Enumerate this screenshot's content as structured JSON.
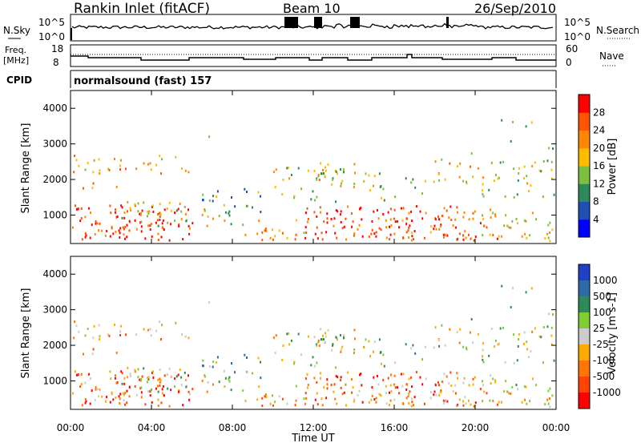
{
  "header": {
    "station": "Rankin Inlet (fitACF)",
    "beam": "Beam 10",
    "date": "26/Sep/2010"
  },
  "top_panels": {
    "nsky_label": "N.Sky",
    "nsky_ticks": [
      "10^5",
      "10^0"
    ],
    "nsearch_label": "N.Search",
    "freq_label": "Freq.",
    "freq_unit": "[MHz]",
    "freq_ticks": [
      "18",
      "8"
    ],
    "nave_label": "Nave",
    "nave_ticks": [
      "60",
      "0"
    ],
    "cpid_label": "CPID",
    "cpid_value": "normalsound (fast) 157"
  },
  "colors": {
    "power_scale": [
      "#0000ff",
      "#1e50b4",
      "#2e8a5a",
      "#7fbf3f",
      "#ffbb00",
      "#ff8800",
      "#ff5500",
      "#ff0000"
    ],
    "velocity_scale": [
      "#2040c8",
      "#2e6aa8",
      "#2e8a5a",
      "#7fcc33",
      "#cccccc",
      "#ffaa00",
      "#ff7700",
      "#ff4400",
      "#ff0000"
    ]
  },
  "chart_data": [
    {
      "type": "heatmap",
      "title": "Power",
      "xlabel": "",
      "ylabel": "Slant Range [km]",
      "x_ticks": [
        "00:00",
        "04:00",
        "08:00",
        "12:00",
        "16:00",
        "20:00",
        "00:00"
      ],
      "y_ticks": [
        "1000",
        "2000",
        "3000",
        "4000"
      ],
      "ylim": [
        200,
        4500
      ],
      "colorbar": {
        "label": "Power [dB]",
        "ticks": [
          "4",
          "8",
          "12",
          "16",
          "20",
          "24",
          "28"
        ],
        "range": [
          0,
          32
        ]
      },
      "grid": false
    },
    {
      "type": "heatmap",
      "title": "Velocity",
      "xlabel": "Time UT",
      "ylabel": "Slant Range [km]",
      "x_ticks": [
        "00:00",
        "04:00",
        "08:00",
        "12:00",
        "16:00",
        "20:00",
        "00:00"
      ],
      "y_ticks": [
        "1000",
        "2000",
        "3000",
        "4000"
      ],
      "ylim": [
        200,
        4500
      ],
      "colorbar": {
        "label": "Velocity [m s-1]",
        "ticks": [
          "1000",
          "500",
          "100",
          "25",
          "-25",
          "-100",
          "-500",
          "-1000"
        ]
      },
      "grid": false
    }
  ]
}
